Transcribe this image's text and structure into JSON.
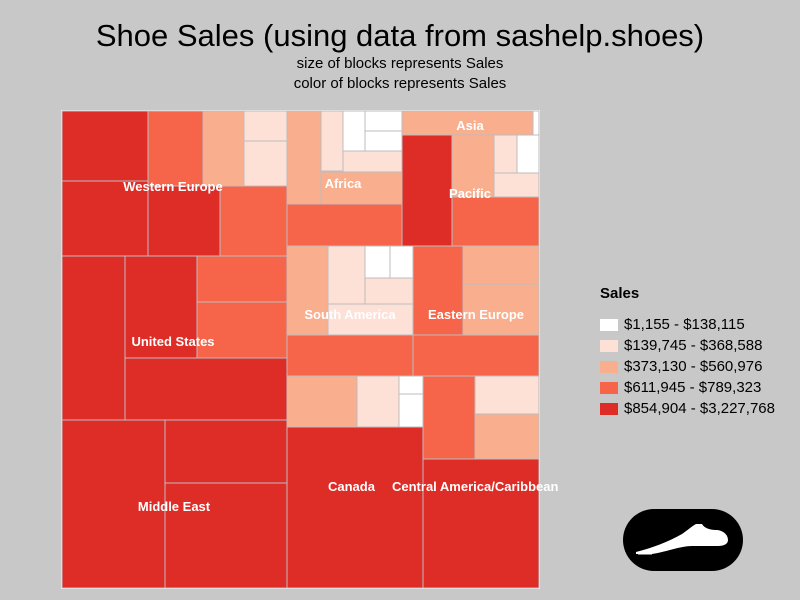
{
  "title": "Shoe Sales (using data from sashelp.shoes)",
  "subtitle1": "size of blocks represents Sales",
  "subtitle2": "color of blocks represents Sales",
  "colors": {
    "background": "#c8c8c8",
    "bin1": "#ffffff",
    "bin2": "#fde0d6",
    "bin3": "#f9ae8e",
    "bin4": "#f66549",
    "bin5": "#de2c27",
    "border": "#bdbdbd"
  },
  "icon": "shoe-icon",
  "chart_data": {
    "type": "treemap",
    "size_variable": "Sales",
    "color_variable": "Sales",
    "legend": {
      "title": "Sales",
      "placement": "right",
      "items": [
        {
          "label": "$1,155 - $138,115",
          "color": "#ffffff"
        },
        {
          "label": "$139,745 - $368,588",
          "color": "#fde0d6"
        },
        {
          "label": "$373,130 - $560,976",
          "color": "#f9ae8e"
        },
        {
          "label": "$611,945 - $789,323",
          "color": "#f66549"
        },
        {
          "label": "$854,904 - $3,227,768",
          "color": "#de2c27"
        }
      ]
    },
    "regions": [
      {
        "name": "Western Europe",
        "blocks": [
          5,
          5,
          4,
          3,
          2,
          2,
          5,
          4,
          4
        ]
      },
      {
        "name": "United States",
        "blocks": [
          5,
          5,
          4,
          4,
          5
        ]
      },
      {
        "name": "Middle East",
        "blocks": [
          5,
          5,
          5
        ]
      },
      {
        "name": "Africa",
        "blocks": [
          3,
          2,
          1,
          1,
          1,
          2,
          3,
          4
        ]
      },
      {
        "name": "Asia",
        "blocks": [
          3,
          1
        ]
      },
      {
        "name": "Pacific",
        "blocks": [
          5,
          3,
          2,
          1,
          2,
          4
        ]
      },
      {
        "name": "South America",
        "blocks": [
          3,
          2,
          1,
          1,
          2,
          2,
          4
        ]
      },
      {
        "name": "Eastern Europe",
        "blocks": [
          4,
          3,
          3,
          4
        ]
      },
      {
        "name": "Canada",
        "blocks": [
          3,
          2,
          1,
          1,
          5
        ]
      },
      {
        "name": "Central America/Caribbean",
        "blocks": [
          4,
          2,
          3,
          5
        ]
      }
    ]
  }
}
